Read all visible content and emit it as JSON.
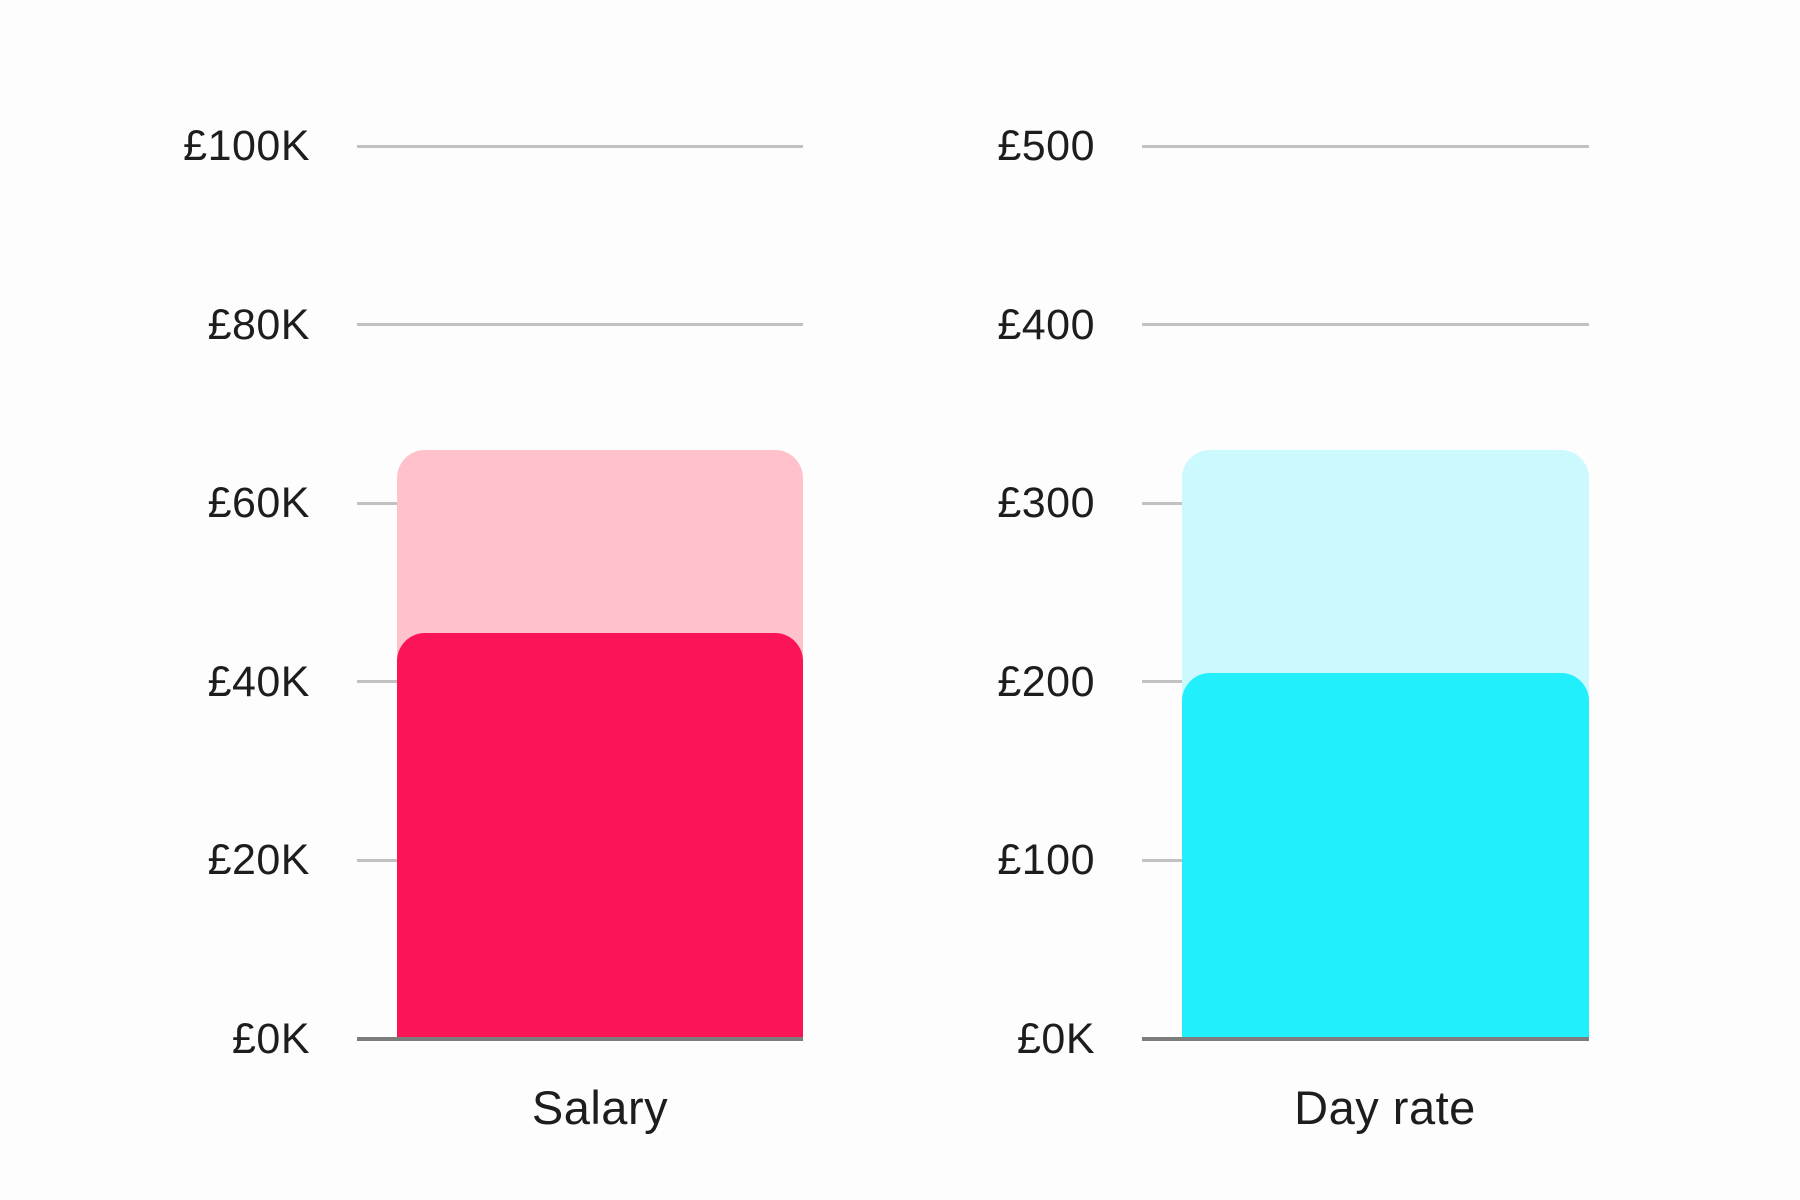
{
  "background": "#fdfdfd",
  "text_color": "#1d1d1d",
  "grid_color": "#c2c2c2",
  "baseline_color": "#7d7d7d",
  "chart_data": [
    {
      "type": "bar",
      "title": "",
      "categories": [
        "Salary"
      ],
      "series": [
        {
          "name": "upper-band",
          "values": [
            66
          ],
          "color": "#ffc2cd"
        },
        {
          "name": "lower-band",
          "values": [
            45.5
          ],
          "color": "#fb1556"
        }
      ],
      "xlabel": "",
      "ylabel": "",
      "ylim": [
        0,
        100
      ],
      "ytick_step": 20,
      "ytick_labels": [
        "£100K",
        "£80K",
        "£60K",
        "£40K",
        "£20K",
        "£0K"
      ],
      "grid": true,
      "legend": false,
      "bar_style": "overlaid-rounded-top"
    },
    {
      "type": "bar",
      "title": "",
      "categories": [
        "Day rate"
      ],
      "series": [
        {
          "name": "upper-band",
          "values": [
            330
          ],
          "color": "#ccf9fe"
        },
        {
          "name": "lower-band",
          "values": [
            205
          ],
          "color": "#22effc"
        }
      ],
      "xlabel": "",
      "ylabel": "",
      "ylim": [
        0,
        500
      ],
      "ytick_step": 100,
      "ytick_labels": [
        "£500",
        "£400",
        "£300",
        "£200",
        "£100",
        "£0K"
      ],
      "grid": true,
      "legend": false,
      "bar_style": "overlaid-rounded-top"
    }
  ]
}
